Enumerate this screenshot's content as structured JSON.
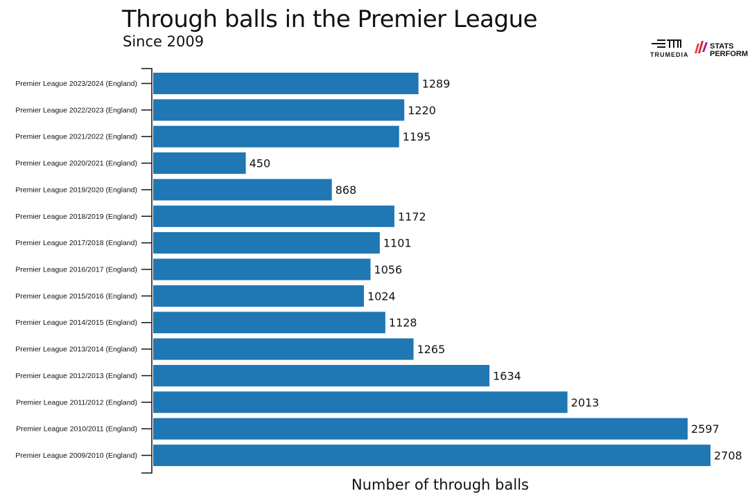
{
  "chart_data": {
    "type": "bar",
    "orientation": "horizontal",
    "title": "Through balls in the Premier League",
    "subtitle": "Since 2009",
    "xlabel": "Number of through balls",
    "ylabel": "",
    "xlim": [
      0,
      2708
    ],
    "grid": false,
    "bar_color": "#1f77b4",
    "categories": [
      "Premier League 2023/2024 (England)",
      "Premier League 2022/2023 (England)",
      "Premier League 2021/2022 (England)",
      "Premier League 2020/2021 (England)",
      "Premier League 2019/2020 (England)",
      "Premier League 2018/2019 (England)",
      "Premier League 2017/2018 (England)",
      "Premier League 2016/2017 (England)",
      "Premier League 2015/2016 (England)",
      "Premier League 2014/2015 (England)",
      "Premier League 2013/2014 (England)",
      "Premier League 2012/2013 (England)",
      "Premier League 2011/2012 (England)",
      "Premier League 2010/2011 (England)",
      "Premier League 2009/2010 (England)"
    ],
    "values": [
      1289,
      1220,
      1195,
      450,
      868,
      1172,
      1101,
      1056,
      1024,
      1128,
      1265,
      1634,
      2013,
      2597,
      2708
    ]
  },
  "logos": {
    "trumedia": "TRUMEDIA",
    "stats_perform": [
      "STATS",
      "PERFORM"
    ]
  }
}
